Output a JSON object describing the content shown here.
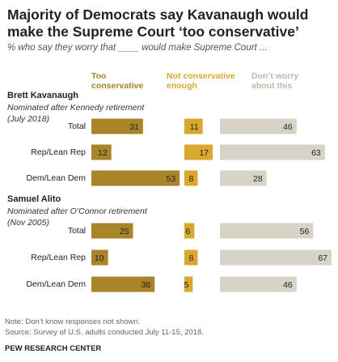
{
  "title": "Majority of Democrats say Kavanaugh would make the Supreme Court ‘too conservative’",
  "subtitle": "% who say they worry that ____ would make Supreme Court ...",
  "colors": {
    "too_conservative": "#a98428",
    "not_conservative_enough": "#d9a92f",
    "dont_worry": "#d7d3c7",
    "dont_worry_label": "#bdb8aa"
  },
  "chart_data": {
    "type": "bar",
    "columns": [
      {
        "name": "Too conservative",
        "lines": [
          "Too",
          "conservative"
        ]
      },
      {
        "name": "Not conservative enough",
        "lines": [
          "Not conservative",
          "enough"
        ]
      },
      {
        "name": "Don't worry about this",
        "lines": [
          "Don’t worry",
          "about this"
        ]
      }
    ],
    "groups": [
      {
        "title": "Brett Kavanaugh",
        "subtitle_lines": [
          "Nominated after Kennedy retirement",
          "(July 2018)"
        ],
        "rows": [
          {
            "label": "Total",
            "values": [
              31,
              11,
              46
            ]
          },
          {
            "label": "Rep/Lean Rep",
            "values": [
              12,
              17,
              63
            ]
          },
          {
            "label": "Dem/Lean Dem",
            "values": [
              53,
              8,
              28
            ]
          }
        ]
      },
      {
        "title": "Samuel Alito",
        "subtitle_lines": [
          "Nominated after O’Connor retirement",
          "(Nov 2005)"
        ],
        "rows": [
          {
            "label": "Total",
            "values": [
              25,
              6,
              56
            ]
          },
          {
            "label": "Rep/Lean Rep",
            "values": [
              10,
              8,
              67
            ]
          },
          {
            "label": "Dem/Lean Dem",
            "values": [
              38,
              5,
              46
            ]
          }
        ]
      }
    ]
  },
  "notes": [
    "Note: Don’t know responses not shown.",
    "Source: Survey of U.S. adults conducted July 11-15, 2018."
  ],
  "footer": "PEW RESEARCH CENTER"
}
